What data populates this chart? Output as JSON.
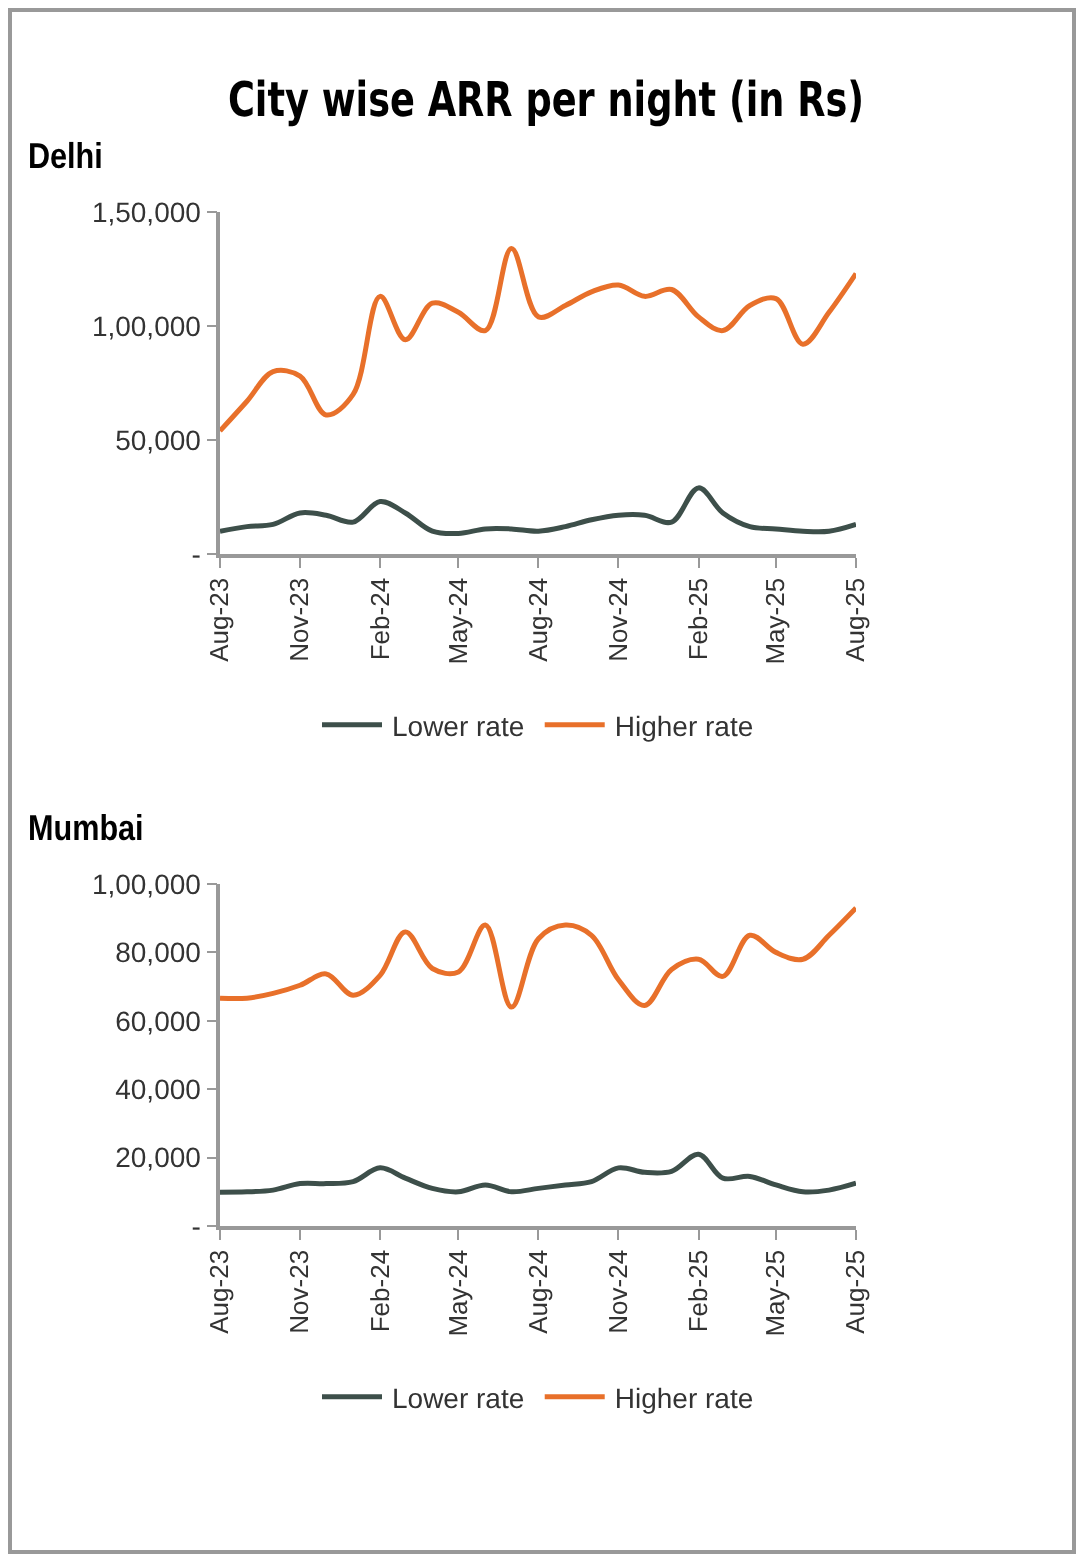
{
  "chart_data": [
    {
      "type": "line",
      "title": "City wise ARR per night (in Rs)",
      "subtitle": "Delhi",
      "x": [
        "2023-08",
        "2023-09",
        "2023-10",
        "2023-11",
        "2023-12",
        "2024-01",
        "2024-02",
        "2024-03",
        "2024-04",
        "2024-05",
        "2024-06",
        "2024-07",
        "2024-08",
        "2024-09",
        "2024-10",
        "2024-11",
        "2024-12",
        "2025-01",
        "2025-02",
        "2025-03",
        "2025-04",
        "2025-05",
        "2025-06",
        "2025-07",
        "2025-08"
      ],
      "series": [
        {
          "name": "Lower rate",
          "color": "#3d4f4a",
          "values": [
            10000,
            12000,
            13000,
            18000,
            17000,
            14000,
            23000,
            18000,
            10000,
            9000,
            11000,
            11000,
            10000,
            12000,
            15000,
            17000,
            17000,
            14000,
            29000,
            18000,
            12000,
            11000,
            10000,
            10000,
            13000
          ]
        },
        {
          "name": "Higher rate",
          "color": "#e8702a",
          "values": [
            54000,
            67000,
            80000,
            78000,
            61000,
            70000,
            113000,
            94000,
            110000,
            106000,
            98000,
            134000,
            104000,
            109000,
            115000,
            118000,
            113000,
            116000,
            104000,
            98000,
            109000,
            112000,
            92000,
            106000,
            123000
          ]
        }
      ],
      "xlim": [
        "2023-08",
        "2025-08"
      ],
      "xticks": [
        {
          "value": "2023-08",
          "label": "Aug-23"
        },
        {
          "value": "2023-11",
          "label": "Nov-23"
        },
        {
          "value": "2024-02",
          "label": "Feb-24"
        },
        {
          "value": "2024-05",
          "label": "May-24"
        },
        {
          "value": "2024-08",
          "label": "Aug-24"
        },
        {
          "value": "2024-11",
          "label": "Nov-24"
        },
        {
          "value": "2025-02",
          "label": "Feb-25"
        },
        {
          "value": "2025-05",
          "label": "May-25"
        },
        {
          "value": "2025-08",
          "label": "Aug-25"
        }
      ],
      "ylim": [
        0,
        150000
      ],
      "yticks": [
        {
          "value": 0,
          "label": "-"
        },
        {
          "value": 50000,
          "label": "50,000"
        },
        {
          "value": 100000,
          "label": "1,00,000"
        },
        {
          "value": 150000,
          "label": "1,50,000"
        }
      ],
      "grid": false,
      "legend": "bottom",
      "marker": "none",
      "line_style": "solid"
    },
    {
      "type": "line",
      "title": "Mumbai",
      "x": [
        "2023-08",
        "2023-09",
        "2023-10",
        "2023-11",
        "2023-12",
        "2024-01",
        "2024-02",
        "2024-03",
        "2024-04",
        "2024-05",
        "2024-06",
        "2024-07",
        "2024-08",
        "2024-09",
        "2024-10",
        "2024-11",
        "2024-12",
        "2025-01",
        "2025-02",
        "2025-03",
        "2025-04",
        "2025-05",
        "2025-06",
        "2025-07",
        "2025-08"
      ],
      "series": [
        {
          "name": "Lower rate",
          "color": "#3d4f4a",
          "values": [
            9900,
            10000,
            10500,
            12400,
            12400,
            13000,
            17000,
            14000,
            11000,
            10000,
            12000,
            10000,
            11000,
            12000,
            13000,
            17000,
            15700,
            16000,
            21000,
            14000,
            14500,
            12000,
            10000,
            10500,
            12500
          ]
        },
        {
          "name": "Higher rate",
          "color": "#e8702a",
          "values": [
            66600,
            66600,
            68000,
            70400,
            73700,
            67500,
            73300,
            86000,
            75300,
            74300,
            88000,
            64000,
            84000,
            88000,
            85000,
            72000,
            64500,
            75000,
            78000,
            73000,
            85000,
            80000,
            78000,
            85000,
            93000
          ]
        }
      ],
      "xlim": [
        "2023-08",
        "2025-08"
      ],
      "xticks": [
        {
          "value": "2023-08",
          "label": "Aug-23"
        },
        {
          "value": "2023-11",
          "label": "Nov-23"
        },
        {
          "value": "2024-02",
          "label": "Feb-24"
        },
        {
          "value": "2024-05",
          "label": "May-24"
        },
        {
          "value": "2024-08",
          "label": "Aug-24"
        },
        {
          "value": "2024-11",
          "label": "Nov-24"
        },
        {
          "value": "2025-02",
          "label": "Feb-25"
        },
        {
          "value": "2025-05",
          "label": "May-25"
        },
        {
          "value": "2025-08",
          "label": "Aug-25"
        }
      ],
      "ylim": [
        0,
        100000
      ],
      "yticks": [
        {
          "value": 0,
          "label": "-"
        },
        {
          "value": 20000,
          "label": "20,000"
        },
        {
          "value": 40000,
          "label": "40,000"
        },
        {
          "value": 60000,
          "label": "60,000"
        },
        {
          "value": 80000,
          "label": "80,000"
        },
        {
          "value": 100000,
          "label": "1,00,000"
        }
      ],
      "grid": false,
      "legend": "bottom",
      "marker": "none",
      "line_style": "solid"
    }
  ]
}
